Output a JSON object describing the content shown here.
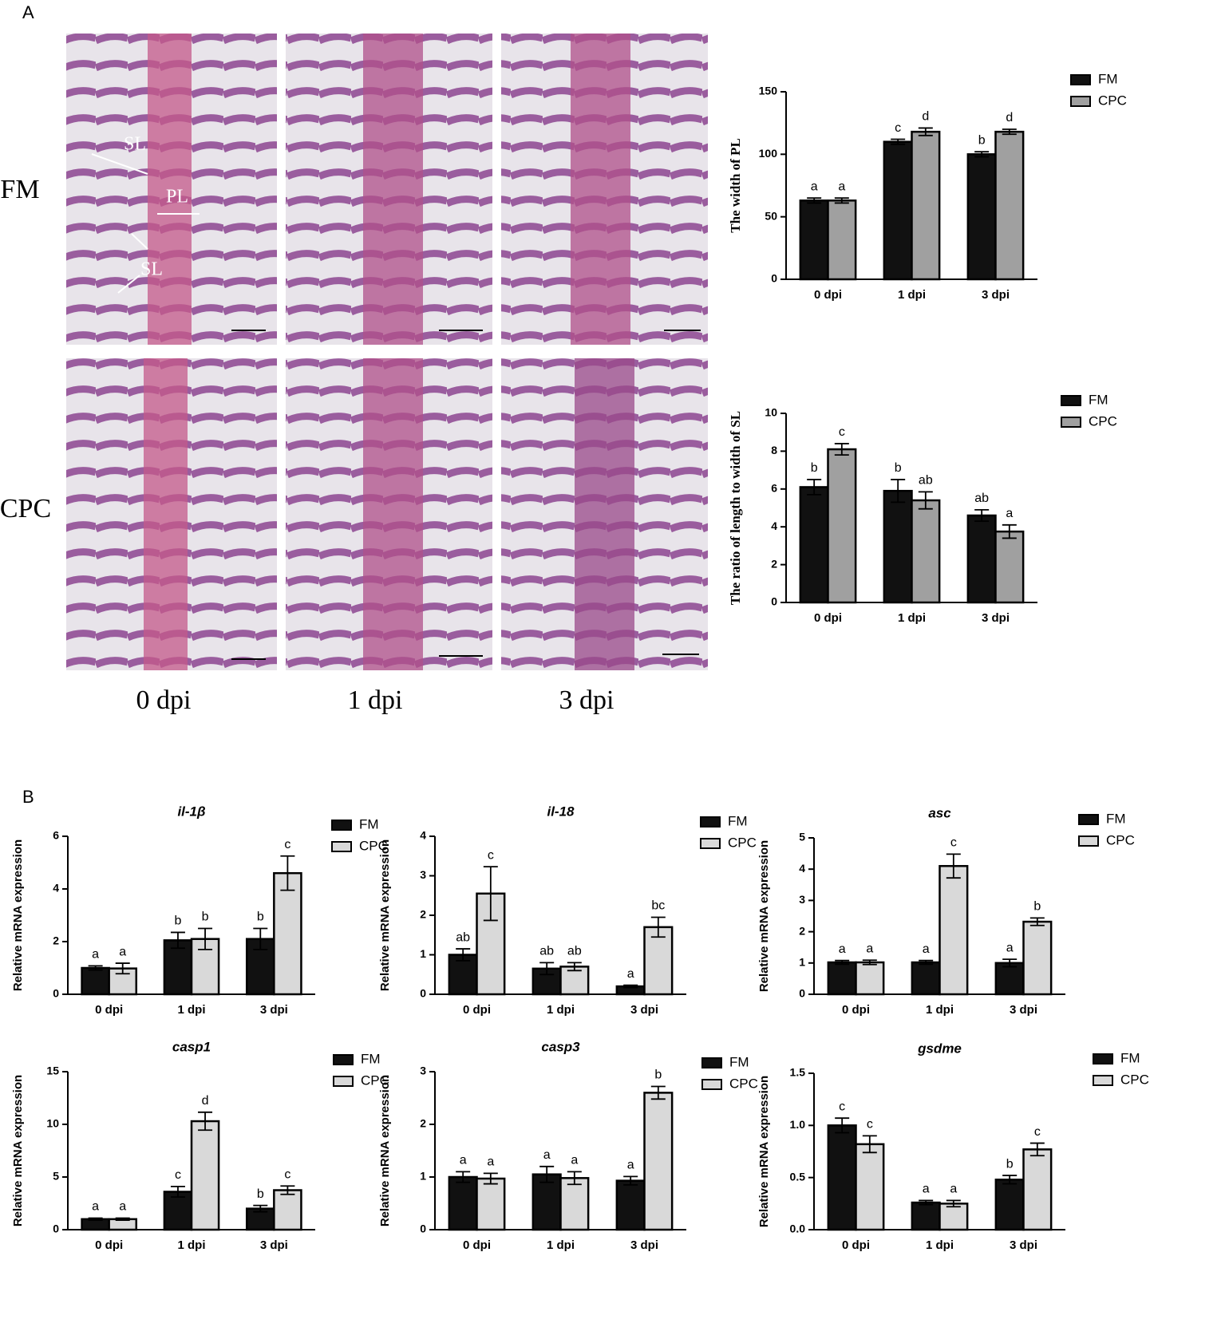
{
  "figure": {
    "panels": [
      "A",
      "B"
    ],
    "image_rows": [
      "FM",
      "CPC"
    ],
    "image_cols": [
      "0 dpi",
      "1 dpi",
      "3 dpi"
    ],
    "annotations": [
      "SL",
      "PL",
      "SL"
    ]
  },
  "chart_data": [
    {
      "type": "bar",
      "ylabel": "The width of PL",
      "categories": [
        "0 dpi",
        "1 dpi",
        "3 dpi"
      ],
      "ylim": [
        0,
        150
      ],
      "yticks": [
        0,
        50,
        100,
        150
      ],
      "series": [
        {
          "name": "FM",
          "color": "#111111",
          "values": [
            63,
            110,
            100
          ],
          "errors": [
            2,
            2,
            2
          ],
          "letters": [
            "a",
            "c",
            "b"
          ]
        },
        {
          "name": "CPC",
          "color": "#a0a0a0",
          "values": [
            63,
            118,
            118
          ],
          "errors": [
            2,
            3,
            2
          ],
          "letters": [
            "a",
            "d",
            "d"
          ]
        }
      ]
    },
    {
      "type": "bar",
      "ylabel": "The ratio of length to width of  SL",
      "categories": [
        "0 dpi",
        "1 dpi",
        "3 dpi"
      ],
      "ylim": [
        0,
        10
      ],
      "yticks": [
        0,
        2,
        4,
        6,
        8,
        10
      ],
      "series": [
        {
          "name": "FM",
          "color": "#111111",
          "values": [
            6.1,
            5.9,
            4.6
          ],
          "errors": [
            0.4,
            0.6,
            0.3
          ],
          "letters": [
            "b",
            "b",
            "ab"
          ]
        },
        {
          "name": "CPC",
          "color": "#a0a0a0",
          "values": [
            8.1,
            5.4,
            3.75
          ],
          "errors": [
            0.3,
            0.45,
            0.35
          ],
          "letters": [
            "c",
            "ab",
            "a"
          ]
        }
      ]
    },
    {
      "type": "bar",
      "title": "il-1β",
      "ylabel": "Relative mRNA expression",
      "categories": [
        "0 dpi",
        "1 dpi",
        "3 dpi"
      ],
      "ylim": [
        0,
        6
      ],
      "yticks": [
        0,
        2,
        4,
        6
      ],
      "series": [
        {
          "name": "FM",
          "color": "#111111",
          "values": [
            1.0,
            2.05,
            2.1
          ],
          "errors": [
            0.08,
            0.3,
            0.4
          ],
          "letters": [
            "a",
            "b",
            "b"
          ]
        },
        {
          "name": "CPC",
          "color": "#d9d9d9",
          "values": [
            0.98,
            2.1,
            4.6
          ],
          "errors": [
            0.2,
            0.4,
            0.65
          ],
          "letters": [
            "a",
            "b",
            "c"
          ]
        }
      ]
    },
    {
      "type": "bar",
      "title": "il-18",
      "ylabel": "Relative mRNA expression",
      "categories": [
        "0 dpi",
        "1 dpi",
        "3 dpi"
      ],
      "ylim": [
        0,
        4
      ],
      "yticks": [
        0,
        1,
        2,
        3,
        4
      ],
      "series": [
        {
          "name": "FM",
          "color": "#111111",
          "values": [
            1.0,
            0.65,
            0.2
          ],
          "errors": [
            0.15,
            0.15,
            0.03
          ],
          "letters": [
            "ab",
            "ab",
            "a"
          ]
        },
        {
          "name": "CPC",
          "color": "#d9d9d9",
          "values": [
            2.55,
            0.7,
            1.7
          ],
          "errors": [
            0.68,
            0.1,
            0.25
          ],
          "letters": [
            "c",
            "ab",
            "bc"
          ]
        }
      ]
    },
    {
      "type": "bar",
      "title": "asc",
      "ylabel": "Relative mRNA expression",
      "categories": [
        "0 dpi",
        "1 dpi",
        "3 dpi"
      ],
      "ylim": [
        0,
        5
      ],
      "yticks": [
        0,
        1,
        2,
        3,
        4,
        5
      ],
      "series": [
        {
          "name": "FM",
          "color": "#111111",
          "values": [
            1.02,
            1.02,
            1.0
          ],
          "errors": [
            0.06,
            0.06,
            0.12
          ],
          "letters": [
            "a",
            "a",
            "a"
          ]
        },
        {
          "name": "CPC",
          "color": "#d9d9d9",
          "values": [
            1.02,
            4.1,
            2.32
          ],
          "errors": [
            0.07,
            0.38,
            0.12
          ],
          "letters": [
            "a",
            "c",
            "b"
          ]
        }
      ]
    },
    {
      "type": "bar",
      "title": "casp1",
      "ylabel": "Relative mRNA expression",
      "categories": [
        "0 dpi",
        "1 dpi",
        "3 dpi"
      ],
      "ylim": [
        0,
        15
      ],
      "yticks": [
        0,
        5,
        10,
        15
      ],
      "series": [
        {
          "name": "FM",
          "color": "#111111",
          "values": [
            1.0,
            3.6,
            2.0
          ],
          "errors": [
            0.1,
            0.5,
            0.3
          ],
          "letters": [
            "a",
            "c",
            "b"
          ]
        },
        {
          "name": "CPC",
          "color": "#d9d9d9",
          "values": [
            1.0,
            10.3,
            3.75
          ],
          "errors": [
            0.1,
            0.85,
            0.4
          ],
          "letters": [
            "a",
            "d",
            "c"
          ]
        }
      ]
    },
    {
      "type": "bar",
      "title": "casp3",
      "ylabel": "Relative mRNA expression",
      "categories": [
        "0 dpi",
        "1 dpi",
        "3 dpi"
      ],
      "ylim": [
        0,
        3
      ],
      "yticks": [
        0,
        1,
        2,
        3
      ],
      "series": [
        {
          "name": "FM",
          "color": "#111111",
          "values": [
            1.0,
            1.05,
            0.93
          ],
          "errors": [
            0.1,
            0.15,
            0.08
          ],
          "letters": [
            "a",
            "a",
            "a"
          ]
        },
        {
          "name": "CPC",
          "color": "#d9d9d9",
          "values": [
            0.97,
            0.98,
            2.6
          ],
          "errors": [
            0.1,
            0.12,
            0.12
          ],
          "letters": [
            "a",
            "a",
            "b"
          ]
        }
      ]
    },
    {
      "type": "bar",
      "title": "gsdme",
      "ylabel": "Relative mRNA expression",
      "categories": [
        "0 dpi",
        "1 dpi",
        "3 dpi"
      ],
      "ylim": [
        0,
        1.5
      ],
      "yticks": [
        {
          "value": 0,
          "label": "0.0"
        },
        0.5,
        {
          "value": 1,
          "label": "1.0"
        },
        1.5
      ],
      "series": [
        {
          "name": "FM",
          "color": "#111111",
          "values": [
            1.0,
            0.26,
            0.48
          ],
          "errors": [
            0.07,
            0.02,
            0.04
          ],
          "letters": [
            "c",
            "a",
            "b"
          ]
        },
        {
          "name": "CPC",
          "color": "#d9d9d9",
          "values": [
            0.82,
            0.25,
            0.77
          ],
          "errors": [
            0.08,
            0.03,
            0.06
          ],
          "letters": [
            "c",
            "a",
            "c"
          ]
        }
      ]
    }
  ]
}
